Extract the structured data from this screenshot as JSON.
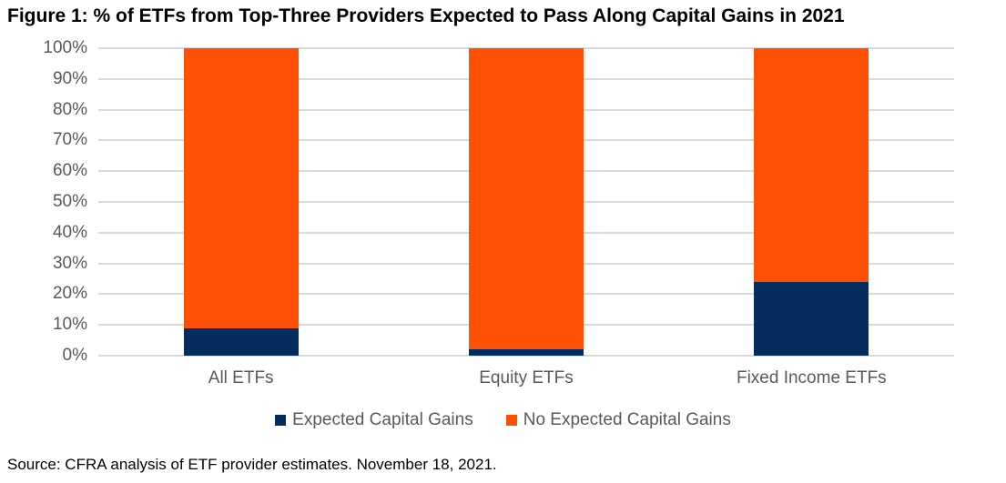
{
  "title": "Figure 1: % of ETFs from Top-Three Providers Expected to Pass Along Capital Gains in 2021",
  "source": "Source: CFRA analysis of ETF provider estimates. November 18, 2021.",
  "colors": {
    "expected": "#052c5e",
    "no_expected": "#ff5005",
    "gridline": "#d9d9d9",
    "axis_text": "#595959",
    "title_text": "#000000"
  },
  "legend": [
    {
      "label": "Expected Capital Gains",
      "color": "#052c5e"
    },
    {
      "label": "No Expected Capital Gains",
      "color": "#ff5005"
    }
  ],
  "chart_data": {
    "type": "bar",
    "stacked": true,
    "title": "Figure 1: % of ETFs from Top-Three Providers Expected to Pass Along Capital Gains in 2021",
    "categories": [
      "All ETFs",
      "Equity ETFs",
      "Fixed Income ETFs"
    ],
    "series": [
      {
        "name": "Expected Capital Gains",
        "color": "#052c5e",
        "values": [
          9,
          2,
          24
        ]
      },
      {
        "name": "No Expected Capital Gains",
        "color": "#ff5005",
        "values": [
          91,
          98,
          76
        ]
      }
    ],
    "xlabel": "",
    "ylabel": "",
    "ylim": [
      0,
      100
    ],
    "y_ticks": [
      "0%",
      "10%",
      "20%",
      "30%",
      "40%",
      "50%",
      "60%",
      "70%",
      "80%",
      "90%",
      "100%"
    ],
    "grid": true,
    "legend_position": "bottom"
  }
}
